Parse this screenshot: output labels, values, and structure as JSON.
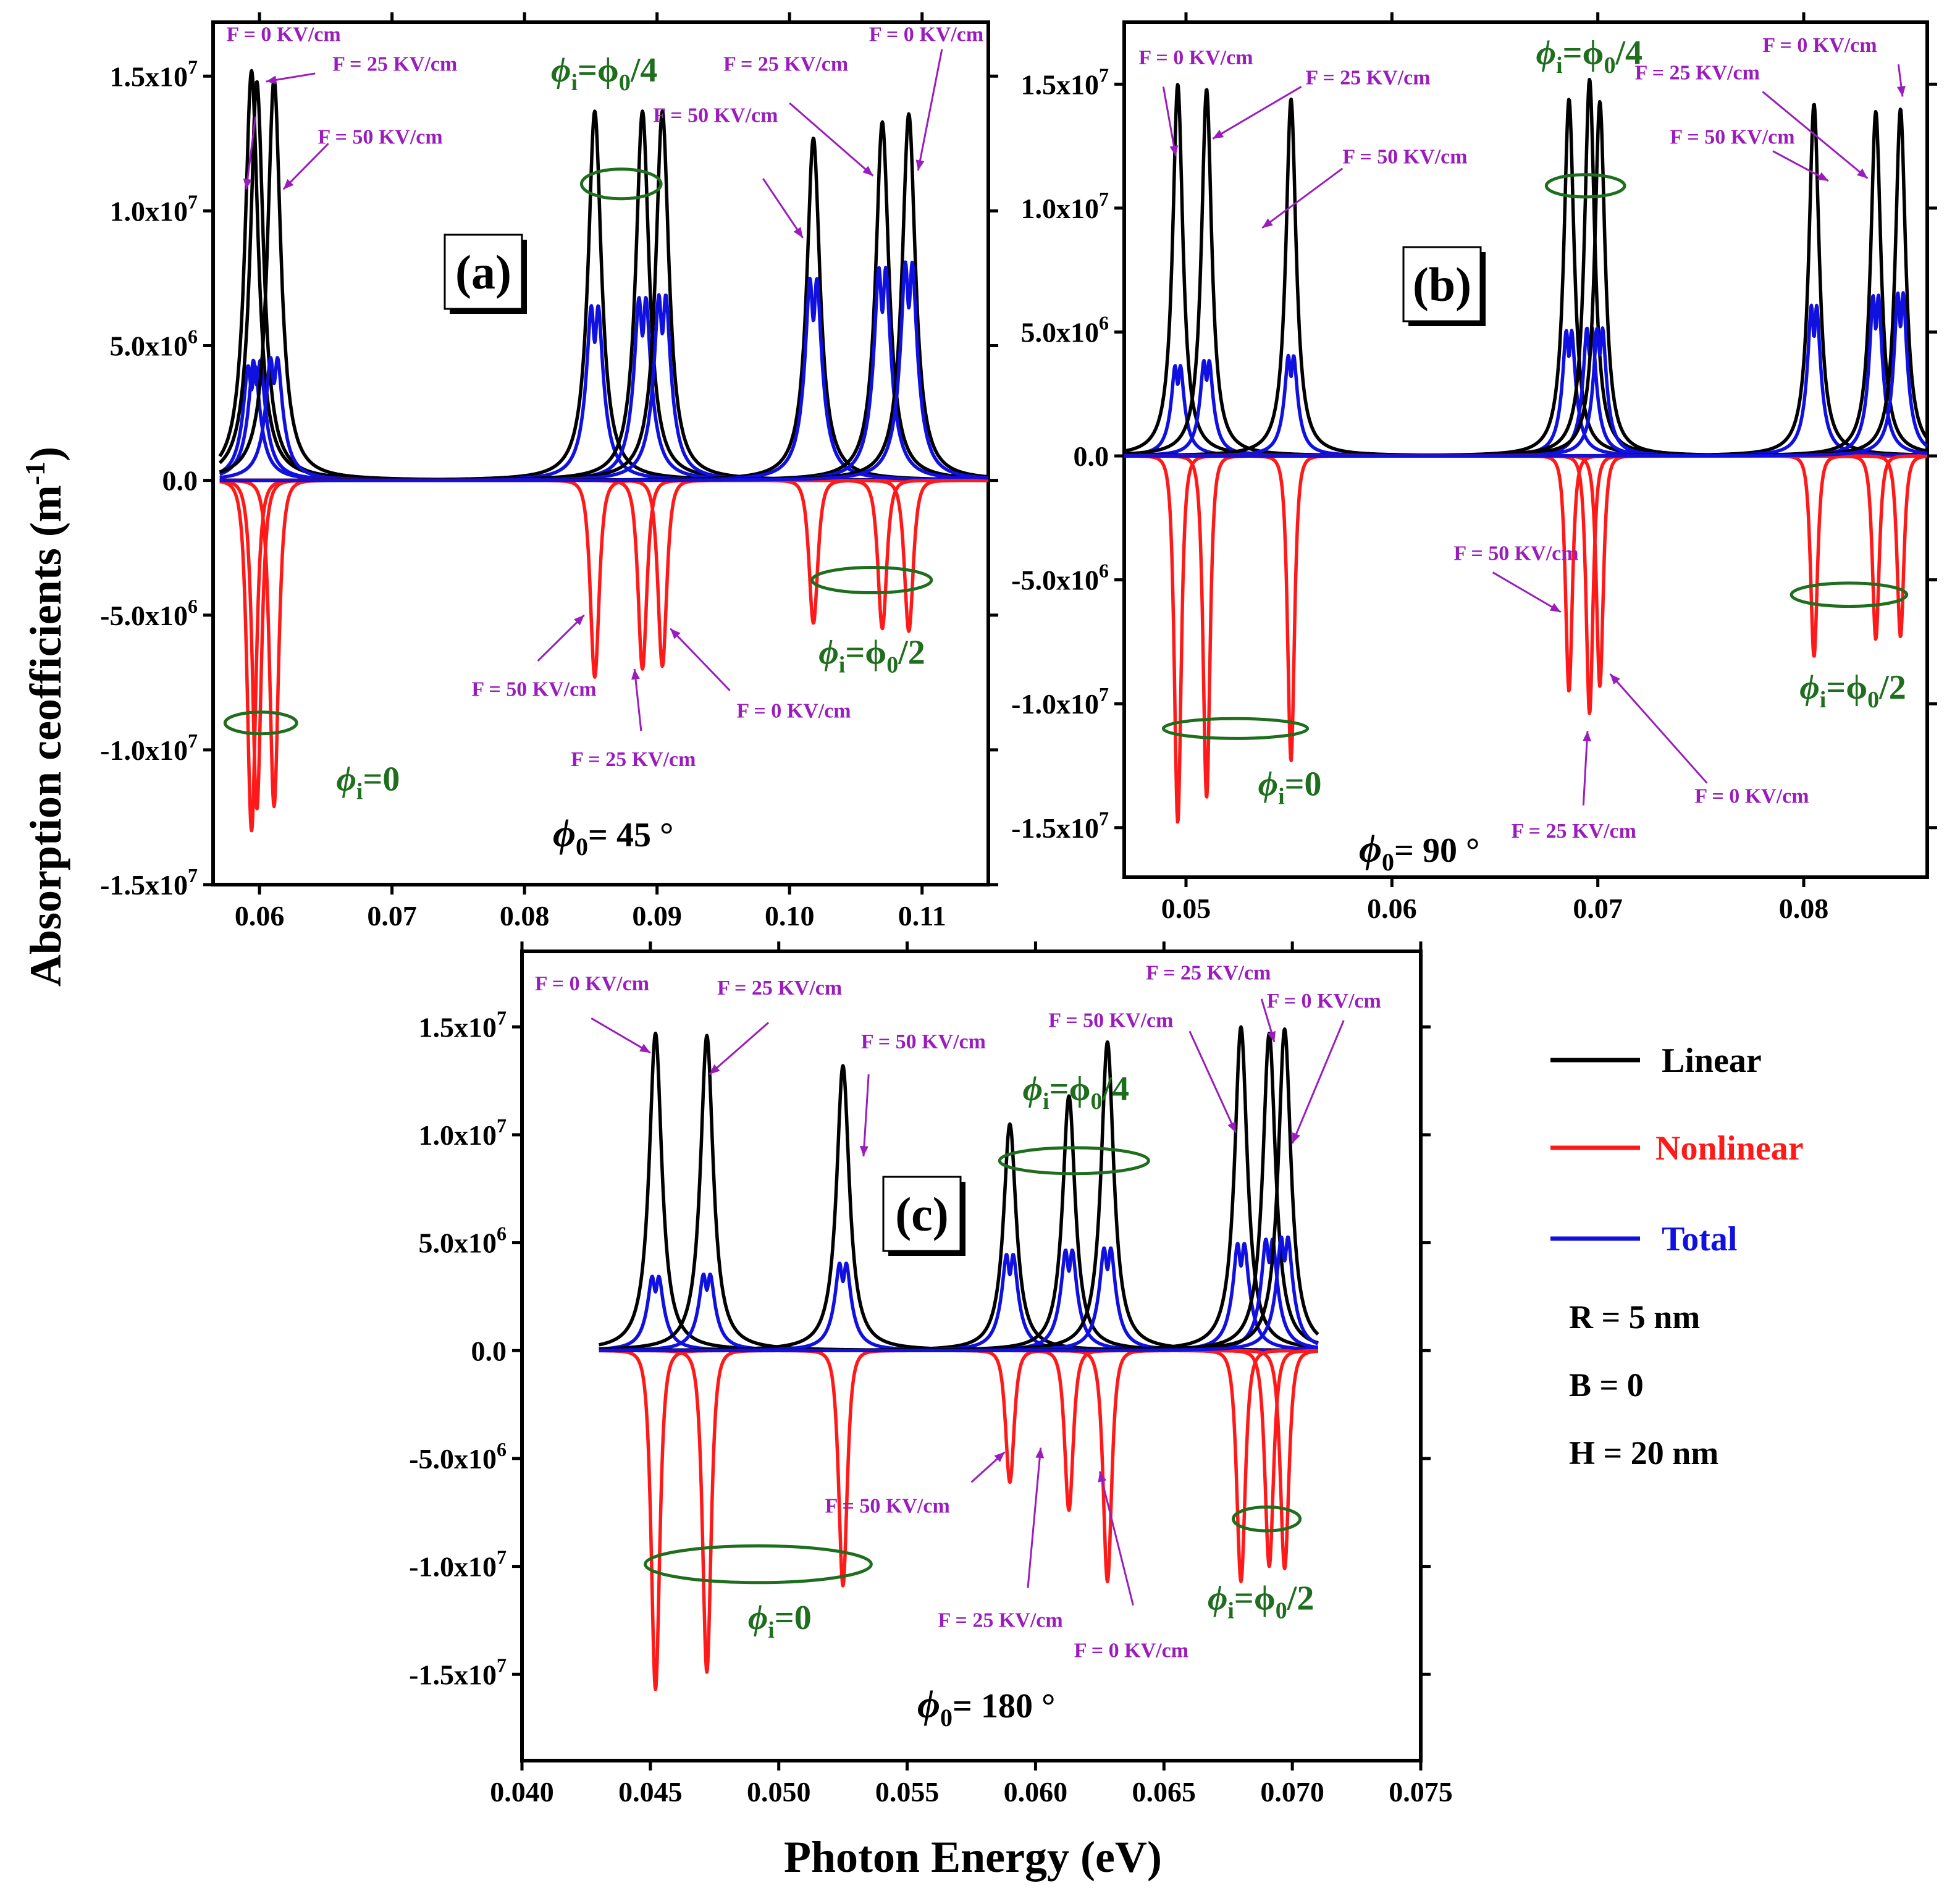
{
  "figure": {
    "ylabel": "Absorption ceofficients (m",
    "ylabel_sup": "-1",
    "ylabel_close": ")",
    "xlabel": "Photon Energy (eV)"
  },
  "legend": [
    {
      "label": "Linear",
      "color": "#000000"
    },
    {
      "label": "Nonlinear",
      "color": "#ff1a1a"
    },
    {
      "label": "Total",
      "color": "#1010e0"
    }
  ],
  "parameters": [
    "R = 5 nm",
    "B = 0",
    "H = 20 nm"
  ],
  "colors": {
    "linear": "#000000",
    "nonlinear": "#ff1a1a",
    "total": "#1010e0",
    "annotation": "#9a1cbc",
    "phi": "#1e6e1e"
  },
  "chart_data": [
    {
      "type": "line",
      "panel": "(a)",
      "phi0_label": "45 °",
      "xlim": [
        0.0565,
        0.115
      ],
      "ylim": [
        -15000000,
        17000000
      ],
      "xticks": [
        0.06,
        0.07,
        0.08,
        0.09,
        0.1,
        0.11
      ],
      "xtick_labels": [
        "0.06",
        "0.07",
        "0.08",
        "0.09",
        "0.10",
        "0.11"
      ],
      "yticks": [
        -15000000,
        -10000000,
        -5000000,
        0,
        5000000,
        10000000,
        15000000
      ],
      "ytick_labels": [
        [
          "-1.5x10",
          "7"
        ],
        [
          "-1.0x10",
          "7"
        ],
        [
          "-5.0x10",
          "6"
        ],
        [
          "0.0",
          ""
        ],
        [
          "5.0x10",
          "6"
        ],
        [
          "1.0x10",
          "7"
        ],
        [
          "1.5x10",
          "7"
        ]
      ],
      "x_range": [
        0.057,
        0.115
      ],
      "width": 0.0006,
      "peaks": [
        {
          "x": 0.0594,
          "linear": 15200000,
          "nonlinear": -13000000,
          "total": 4200000
        },
        {
          "x": 0.0598,
          "linear": 14800000,
          "nonlinear": -12200000,
          "total": 4400000
        },
        {
          "x": 0.0611,
          "linear": 14900000,
          "nonlinear": -12100000,
          "total": 4500000
        },
        {
          "x": 0.0853,
          "linear": 13700000,
          "nonlinear": -7300000,
          "total": 6400000
        },
        {
          "x": 0.0889,
          "linear": 13700000,
          "nonlinear": -7000000,
          "total": 6700000
        },
        {
          "x": 0.0904,
          "linear": 13700000,
          "nonlinear": -6900000,
          "total": 6800000
        },
        {
          "x": 0.1018,
          "linear": 12700000,
          "nonlinear": -5300000,
          "total": 7400000
        },
        {
          "x": 0.107,
          "linear": 13300000,
          "nonlinear": -5500000,
          "total": 7800000
        },
        {
          "x": 0.109,
          "linear": 13600000,
          "nonlinear": -5600000,
          "total": 8000000
        }
      ],
      "annotations": [
        {
          "text": "F = 0 KV/cm",
          "x": 0.0575,
          "y": 16300000,
          "ax": 0.0597,
          "ay": 13500000,
          "tx": 0.059,
          "ty": 10800000
        },
        {
          "text": "F = 25  KV/cm",
          "x": 0.0655,
          "y": 15200000,
          "ax": 0.0642,
          "ay": 15100000,
          "tx": 0.0605,
          "ty": 14800000
        },
        {
          "text": "F = 50  KV/cm",
          "x": 0.0644,
          "y": 12500000,
          "ax": 0.0652,
          "ay": 12500000,
          "tx": 0.0618,
          "ty": 10800000
        },
        {
          "text": "F = 25  KV/cm",
          "x": 0.095,
          "y": 15200000,
          "ax": 0.1,
          "ay": 14000000,
          "tx": 0.1063,
          "ty": 11300000
        },
        {
          "text": "F = 0 KV/cm",
          "x": 0.106,
          "y": 16300000,
          "ax": 0.1115,
          "ay": 16000000,
          "tx": 0.1097,
          "ty": 11500000
        },
        {
          "text": "F = 50  KV/cm",
          "x": 0.0897,
          "y": 13300000,
          "ax": 0.098,
          "ay": 11200000,
          "tx": 0.101,
          "ty": 9000000
        },
        {
          "text": "F = 50  KV/cm",
          "x": 0.076,
          "y": -8000000,
          "ax": 0.081,
          "ay": -6700000,
          "tx": 0.0845,
          "ty": -5000000
        },
        {
          "text": "F = 25  KV/cm",
          "x": 0.0835,
          "y": -10600000,
          "ax": 0.0888,
          "ay": -9300000,
          "tx": 0.0883,
          "ty": -7000000
        },
        {
          "text": "F = 0 KV/cm",
          "x": 0.096,
          "y": -8800000,
          "ax": 0.0955,
          "ay": -7800000,
          "tx": 0.091,
          "ty": -5500000
        }
      ],
      "phi_labels": [
        {
          "sub": "i",
          "rest": "=ϕ",
          "sub2": "0",
          "tail": "/4",
          "x": 0.082,
          "y": 14800000
        },
        {
          "sub": "i",
          "rest": "=0",
          "sub2": "",
          "tail": "",
          "x": 0.0658,
          "y": -11500000
        },
        {
          "sub": "i",
          "rest": "=ϕ",
          "sub2": "0",
          "tail": "/2",
          "x": 0.1022,
          "y": -6800000
        }
      ],
      "ellipses": [
        {
          "x": 0.0873,
          "y": 11000000,
          "rx": 0.003,
          "ry": 550000
        },
        {
          "x": 0.0601,
          "y": -9000000,
          "rx": 0.0027,
          "ry": 400000
        },
        {
          "x": 0.1062,
          "y": -3700000,
          "rx": 0.0045,
          "ry": 470000
        }
      ]
    },
    {
      "type": "line",
      "panel": "(b)",
      "phi0_label": "90 °",
      "xlim": [
        0.047,
        0.086
      ],
      "ylim": [
        -17000000,
        17500000
      ],
      "xticks": [
        0.05,
        0.06,
        0.07,
        0.08
      ],
      "xtick_labels": [
        "0.05",
        "0.06",
        "0.07",
        "0.08"
      ],
      "yticks": [
        -15000000,
        -10000000,
        -5000000,
        0,
        5000000,
        10000000,
        15000000
      ],
      "ytick_labels": [
        [
          "-1.5x10",
          "7"
        ],
        [
          "-1.0x10",
          "7"
        ],
        [
          "-5.0x10",
          "6"
        ],
        [
          "0.0",
          ""
        ],
        [
          "5.0x10",
          "6"
        ],
        [
          "1.0x10",
          "7"
        ],
        [
          "1.5x10",
          "7"
        ]
      ],
      "x_range": [
        0.047,
        0.086
      ],
      "width": 0.0003,
      "peaks": [
        {
          "x": 0.0496,
          "linear": 15000000,
          "nonlinear": -14800000,
          "total": 3600000
        },
        {
          "x": 0.051,
          "linear": 14800000,
          "nonlinear": -13800000,
          "total": 3800000
        },
        {
          "x": 0.0551,
          "linear": 14400000,
          "nonlinear": -12300000,
          "total": 4000000
        },
        {
          "x": 0.0686,
          "linear": 14400000,
          "nonlinear": -9500000,
          "total": 5000000
        },
        {
          "x": 0.0696,
          "linear": 15200000,
          "nonlinear": -10400000,
          "total": 5100000
        },
        {
          "x": 0.0701,
          "linear": 14300000,
          "nonlinear": -9300000,
          "total": 5100000
        },
        {
          "x": 0.0805,
          "linear": 14200000,
          "nonlinear": -8100000,
          "total": 6000000
        },
        {
          "x": 0.0835,
          "linear": 13900000,
          "nonlinear": -7400000,
          "total": 6400000
        },
        {
          "x": 0.0847,
          "linear": 14000000,
          "nonlinear": -7300000,
          "total": 6500000
        }
      ],
      "annotations": [
        {
          "text": "F = 0 KV/cm",
          "x": 0.0477,
          "y": 15800000,
          "ax": 0.0489,
          "ay": 14900000,
          "tx": 0.0495,
          "ty": 12100000
        },
        {
          "text": "F = 25  KV/cm",
          "x": 0.0558,
          "y": 15000000,
          "ax": 0.0556,
          "ay": 14900000,
          "tx": 0.0513,
          "ty": 12800000
        },
        {
          "text": "F = 50  KV/cm",
          "x": 0.0576,
          "y": 11800000,
          "ax": 0.0576,
          "ay": 11600000,
          "tx": 0.0537,
          "ty": 9200000
        },
        {
          "text": "F = 50  KV/cm",
          "x": 0.063,
          "y": -4200000,
          "ax": 0.0649,
          "ay": -4700000,
          "tx": 0.0682,
          "ty": -6300000
        },
        {
          "text": "F = 25  KV/cm",
          "x": 0.0658,
          "y": -15400000,
          "ax": 0.0693,
          "ay": -14100000,
          "tx": 0.0695,
          "ty": -11100000
        },
        {
          "text": "F = 0 KV/cm",
          "x": 0.0747,
          "y": -14000000,
          "ax": 0.0753,
          "ay": -13200000,
          "tx": 0.0706,
          "ty": -8800000
        },
        {
          "text": "F = 25  KV/cm",
          "x": 0.0718,
          "y": 15200000,
          "ax": 0.078,
          "ay": 14700000,
          "tx": 0.0831,
          "ty": 11200000
        },
        {
          "text": "F = 0 KV/cm",
          "x": 0.078,
          "y": 16300000,
          "ax": 0.0846,
          "ay": 15800000,
          "tx": 0.0848,
          "ty": 14500000
        },
        {
          "text": "F = 50  KV/cm",
          "x": 0.0735,
          "y": 12600000,
          "ax": 0.0785,
          "ay": 12300000,
          "tx": 0.0812,
          "ty": 11100000
        }
      ],
      "phi_labels": [
        {
          "sub": "i",
          "rest": "=ϕ",
          "sub2": "0",
          "tail": "/4",
          "x": 0.067,
          "y": 15800000
        },
        {
          "sub": "i",
          "rest": "=0",
          "sub2": "",
          "tail": "",
          "x": 0.0535,
          "y": -13700000
        },
        {
          "sub": "i",
          "rest": "=ϕ",
          "sub2": "0",
          "tail": "/2",
          "x": 0.0798,
          "y": -9800000
        }
      ],
      "ellipses": [
        {
          "x": 0.0694,
          "y": 10900000,
          "rx": 0.0019,
          "ry": 450000
        },
        {
          "x": 0.0524,
          "y": -11000000,
          "rx": 0.0035,
          "ry": 400000
        },
        {
          "x": 0.0822,
          "y": -5600000,
          "rx": 0.0028,
          "ry": 470000
        }
      ]
    },
    {
      "type": "line",
      "panel": "(c)",
      "phi0_label": "180 °",
      "xlim": [
        0.04,
        0.075
      ],
      "ylim": [
        -19000000,
        18500000
      ],
      "xticks": [
        0.04,
        0.045,
        0.05,
        0.055,
        0.06,
        0.065,
        0.07,
        0.075
      ],
      "xtick_labels": [
        "0.040",
        "0.045",
        "0.050",
        "0.055",
        "0.060",
        "0.065",
        "0.070",
        "0.075"
      ],
      "yticks": [
        -15000000,
        -10000000,
        -5000000,
        0,
        5000000,
        10000000,
        15000000
      ],
      "ytick_labels": [
        [
          "-1.5x10",
          "7"
        ],
        [
          "-1.0x10",
          "7"
        ],
        [
          "-5.0x10",
          "6"
        ],
        [
          "0.0",
          ""
        ],
        [
          "5.0x10",
          "6"
        ],
        [
          "1.0x10",
          "7"
        ],
        [
          "1.5x10",
          "7"
        ]
      ],
      "x_range": [
        0.043,
        0.071
      ],
      "width": 0.0003,
      "peaks": [
        {
          "x": 0.0452,
          "linear": 14700000,
          "nonlinear": -15700000,
          "total": 3400000
        },
        {
          "x": 0.0472,
          "linear": 14600000,
          "nonlinear": -14900000,
          "total": 3500000
        },
        {
          "x": 0.0525,
          "linear": 13200000,
          "nonlinear": -10900000,
          "total": 4000000
        },
        {
          "x": 0.059,
          "linear": 10500000,
          "nonlinear": -6100000,
          "total": 4400000
        },
        {
          "x": 0.0613,
          "linear": 11800000,
          "nonlinear": -7400000,
          "total": 4600000
        },
        {
          "x": 0.0628,
          "linear": 14300000,
          "nonlinear": -10700000,
          "total": 4700000
        },
        {
          "x": 0.068,
          "linear": 15000000,
          "nonlinear": -10700000,
          "total": 4900000
        },
        {
          "x": 0.0691,
          "linear": 14700000,
          "nonlinear": -10000000,
          "total": 5100000
        },
        {
          "x": 0.0697,
          "linear": 14900000,
          "nonlinear": -10100000,
          "total": 5200000
        }
      ],
      "annotations": [
        {
          "text": "F = 0 KV/cm",
          "x": 0.0405,
          "y": 16700000,
          "ax": 0.0427,
          "ay": 15400000,
          "tx": 0.045,
          "ty": 13800000
        },
        {
          "text": "F = 25  KV/cm",
          "x": 0.0476,
          "y": 16500000,
          "ax": 0.0496,
          "ay": 15200000,
          "tx": 0.0473,
          "ty": 12800000
        },
        {
          "text": "F = 50  KV/cm",
          "x": 0.0532,
          "y": 14000000,
          "ax": 0.0535,
          "ay": 12800000,
          "tx": 0.0533,
          "ty": 9000000
        },
        {
          "text": "F = 50  KV/cm",
          "x": 0.0518,
          "y": -7500000,
          "ax": 0.0575,
          "ay": -6100000,
          "tx": 0.0588,
          "ty": -4700000
        },
        {
          "text": "F = 25  KV/cm",
          "x": 0.0562,
          "y": -12800000,
          "ax": 0.0597,
          "ay": -11000000,
          "tx": 0.0602,
          "ty": -4500000
        },
        {
          "text": "F = 0 KV/cm",
          "x": 0.0615,
          "y": -14200000,
          "ax": 0.0638,
          "ay": -11800000,
          "tx": 0.0625,
          "ty": -5600000
        },
        {
          "text": "F = 50  KV/cm",
          "x": 0.0605,
          "y": 15000000,
          "ax": 0.066,
          "ay": 14800000,
          "tx": 0.0678,
          "ty": 10100000
        },
        {
          "text": "F = 25  KV/cm",
          "x": 0.0643,
          "y": 17200000,
          "ax": 0.0688,
          "ay": 16300000,
          "tx": 0.0693,
          "ty": 14300000
        },
        {
          "text": "F = 0 KV/cm",
          "x": 0.069,
          "y": 15900000,
          "ax": 0.072,
          "ay": 15300000,
          "tx": 0.07,
          "ty": 9600000
        }
      ],
      "phi_labels": [
        {
          "sub": "i",
          "rest": "=ϕ",
          "sub2": "0",
          "tail": "/4",
          "x": 0.0595,
          "y": 11600000
        },
        {
          "sub": "i",
          "rest": "=0",
          "sub2": "",
          "tail": "",
          "x": 0.0488,
          "y": -12900000
        },
        {
          "sub": "i",
          "rest": "=ϕ",
          "sub2": "0",
          "tail": "/2",
          "x": 0.0667,
          "y": -12000000
        }
      ],
      "ellipses": [
        {
          "x": 0.0615,
          "y": 8800000,
          "rx": 0.0029,
          "ry": 600000
        },
        {
          "x": 0.0492,
          "y": -9900000,
          "rx": 0.0044,
          "ry": 850000
        },
        {
          "x": 0.069,
          "y": -7800000,
          "rx": 0.0013,
          "ry": 550000
        }
      ]
    }
  ]
}
